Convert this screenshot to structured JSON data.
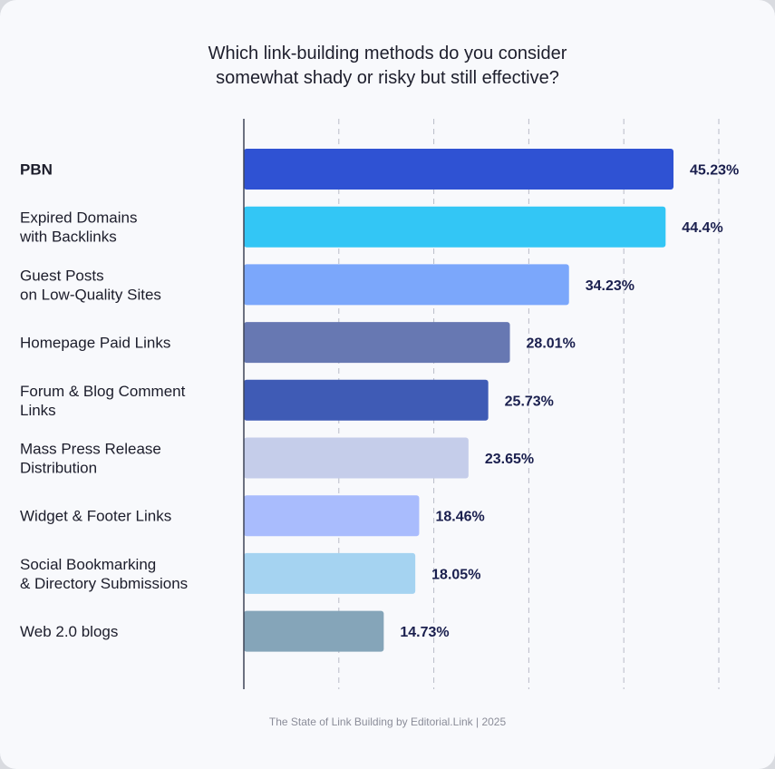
{
  "chart_data": {
    "type": "bar",
    "orientation": "horizontal",
    "title": [
      "Which link-building methods do you consider",
      "somewhat shady or risky but still effective?"
    ],
    "categories": [
      [
        "PBN"
      ],
      [
        "Expired Domains",
        "with Backlinks"
      ],
      [
        "Guest Posts",
        "on Low-Quality Sites"
      ],
      [
        "Homepage Paid Links"
      ],
      [
        "Forum & Blog Comment",
        "Links"
      ],
      [
        "Mass Press Release",
        "Distribution"
      ],
      [
        "Widget & Footer Links"
      ],
      [
        "Social Bookmarking",
        "& Directory Submissions"
      ],
      [
        "Web 2.0 blogs"
      ]
    ],
    "values": [
      45.23,
      44.4,
      34.23,
      28.01,
      25.73,
      23.65,
      18.46,
      18.05,
      14.73
    ],
    "value_labels": [
      "45.23%",
      "44.4%",
      "34.23%",
      "28.01%",
      "25.73%",
      "23.65%",
      "18.46%",
      "18.05%",
      "14.73%"
    ],
    "bar_colors": [
      "#2f52d3",
      "#33c6f5",
      "#7ba7fb",
      "#6778b2",
      "#3f5bb5",
      "#c5cdea",
      "#a9bcfd",
      "#a5d3f1",
      "#85a5b9"
    ],
    "xlim": [
      0,
      50
    ],
    "grid": true,
    "grid_style": "dashed-vertical",
    "bold_first_category": true
  },
  "footer": "The State of Link Building by Editorial.Link | 2025"
}
